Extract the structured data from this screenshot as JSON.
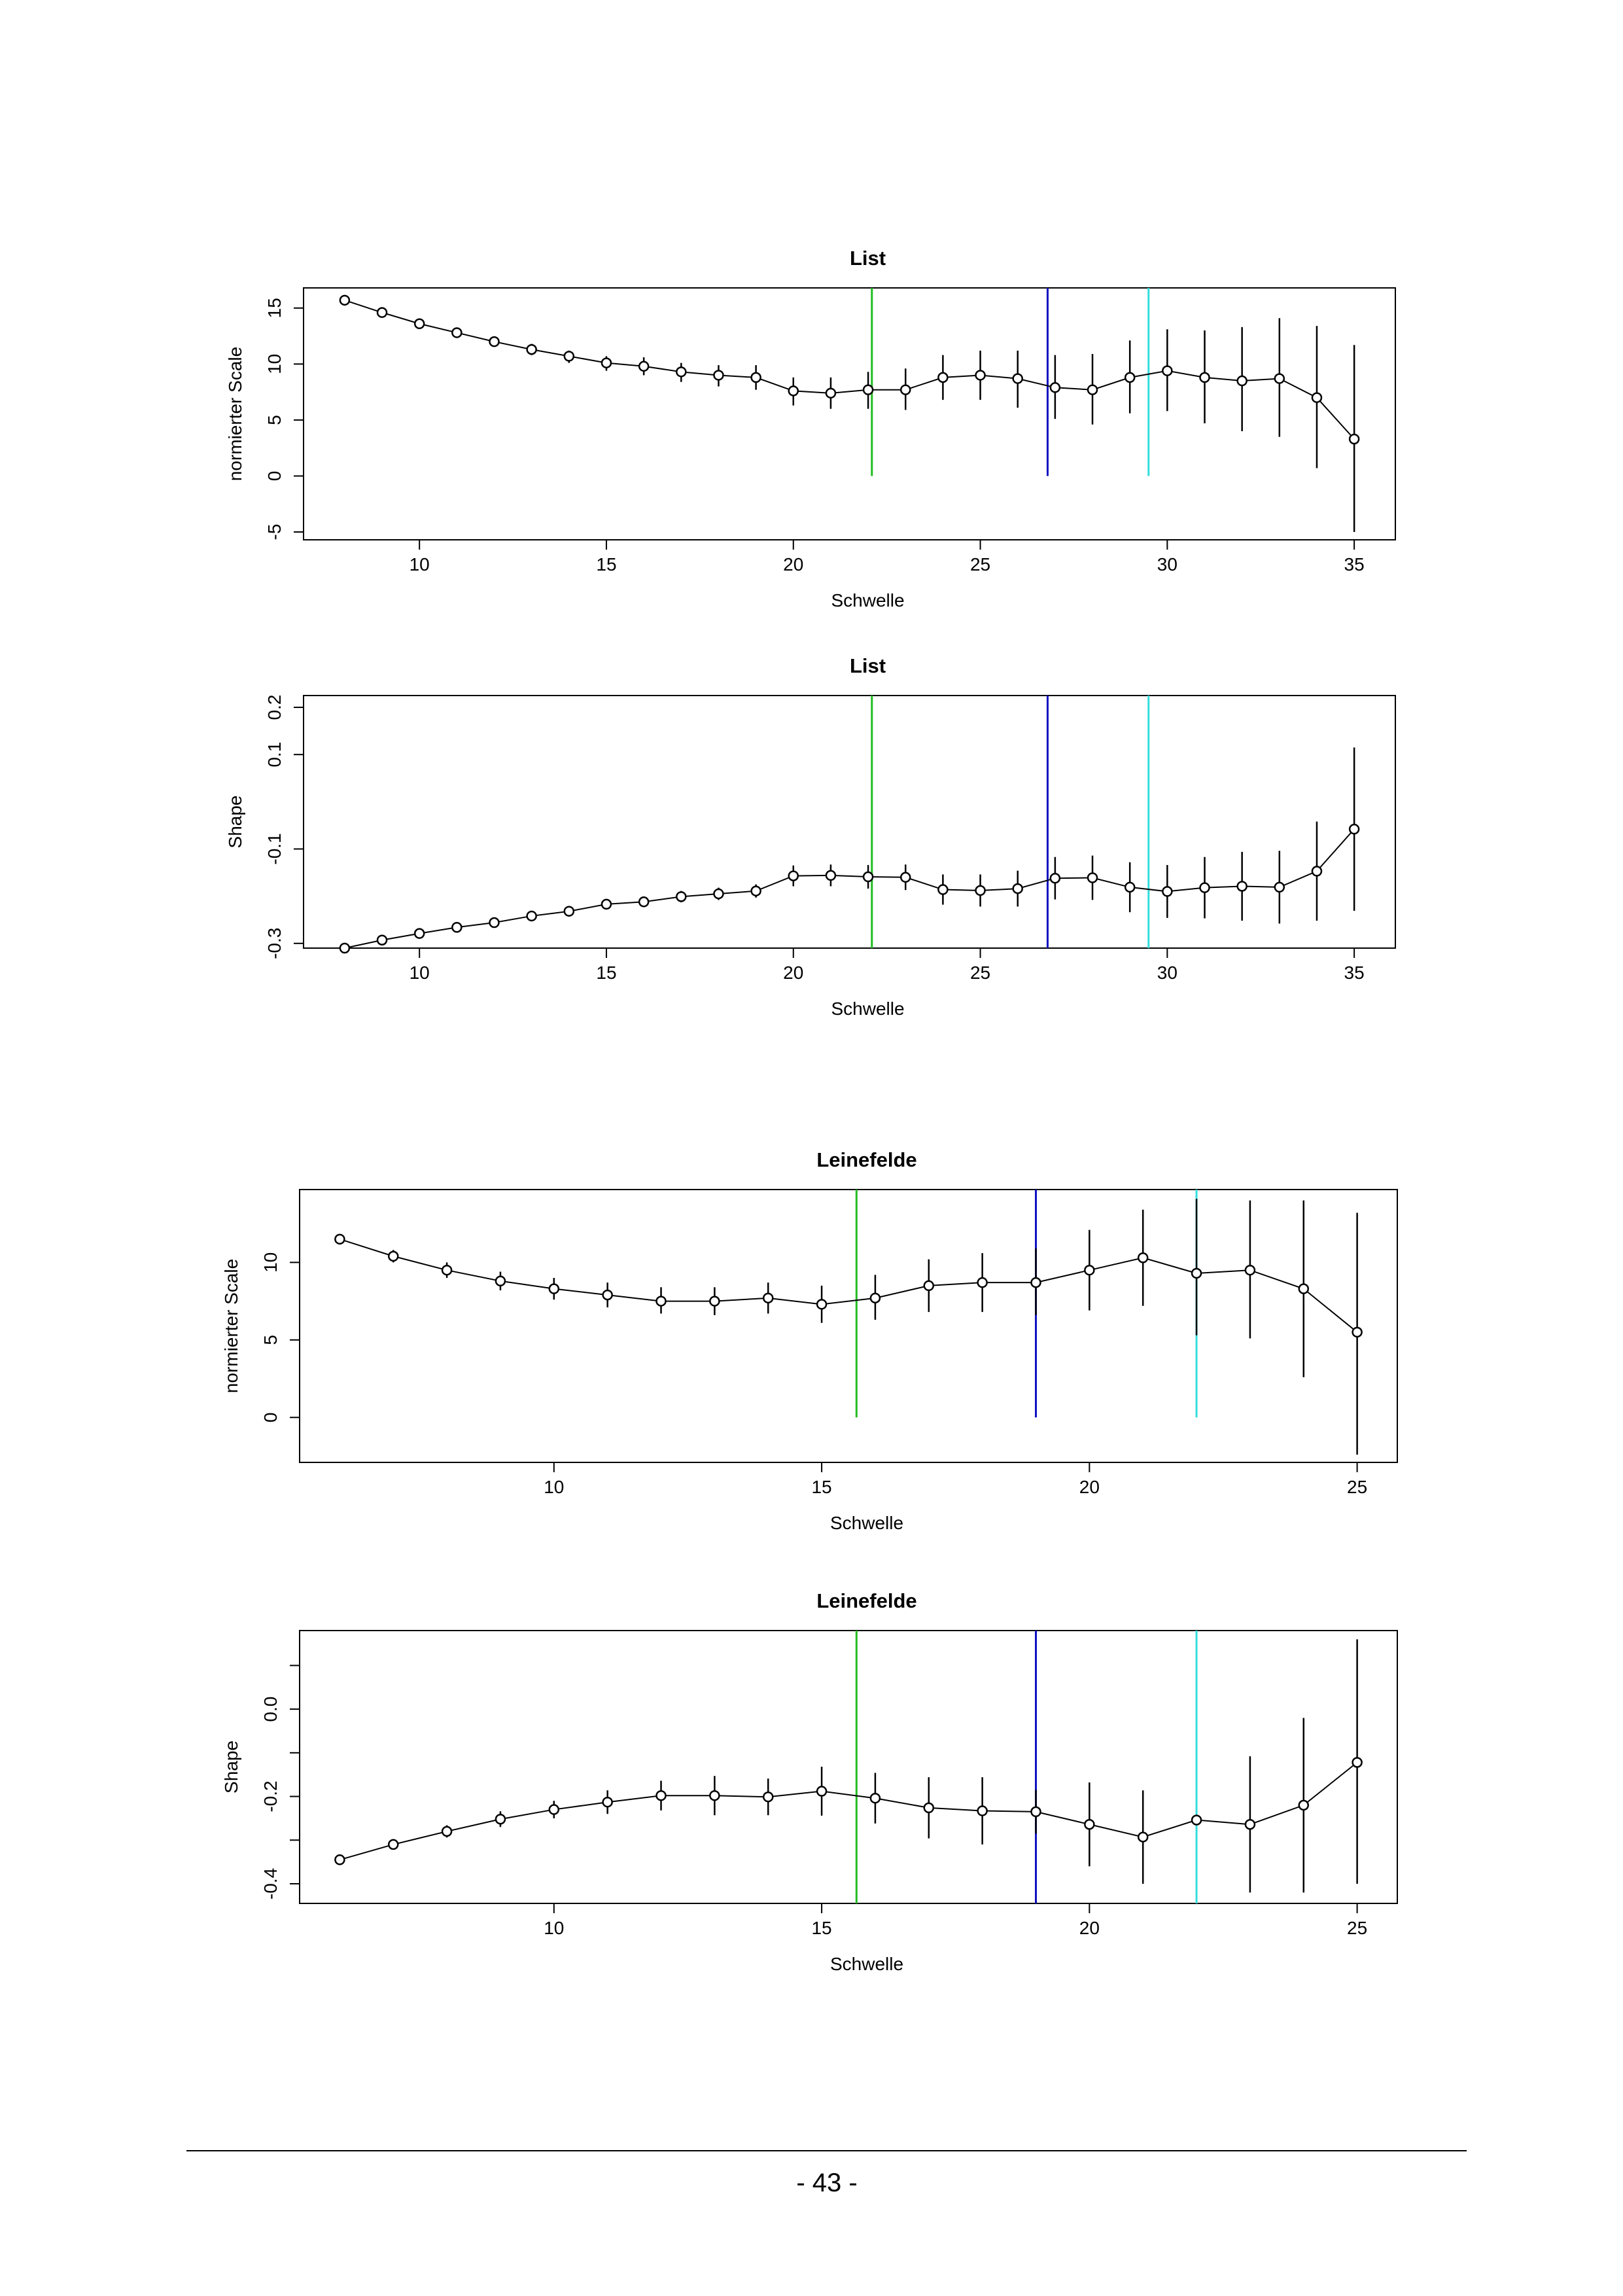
{
  "page": {
    "number_label": "- 43 -"
  },
  "chart_data": [
    {
      "type": "scatter",
      "title": "List",
      "xlabel": "Schwelle",
      "ylabel": "normierter Scale",
      "xlim": [
        6.9,
        36.1
      ],
      "ylim": [
        -5.7,
        16.8
      ],
      "xticks": [
        10,
        15,
        20,
        25,
        30,
        35
      ],
      "xtick_labels": [
        "10",
        "15",
        "20",
        "25",
        "30",
        "35"
      ],
      "yticks": [
        -5,
        0,
        5,
        10,
        15
      ],
      "ytick_labels": [
        "-5",
        "0",
        "5",
        "10",
        "15"
      ],
      "series": [
        {
          "x": [
            8,
            9,
            10,
            11,
            12,
            13,
            14,
            15,
            16,
            17,
            18,
            19,
            20,
            21,
            22,
            23,
            24,
            25,
            26,
            27,
            28,
            29,
            30,
            31,
            32,
            33,
            34,
            35
          ],
          "y": [
            15.7,
            14.6,
            13.6,
            12.8,
            12.0,
            11.3,
            10.7,
            10.1,
            9.8,
            9.3,
            9.0,
            8.8,
            7.6,
            7.4,
            7.7,
            7.7,
            8.8,
            9.0,
            8.7,
            7.9,
            7.7,
            8.8,
            9.4,
            8.8,
            8.5,
            8.7,
            7.0,
            3.3
          ],
          "lower": [
            15.5,
            14.3,
            13.3,
            12.4,
            11.6,
            10.8,
            10.1,
            9.4,
            9.0,
            8.4,
            8.0,
            7.7,
            6.3,
            6.0,
            6.0,
            5.9,
            6.8,
            6.8,
            6.1,
            5.1,
            4.6,
            5.6,
            5.8,
            4.7,
            4.0,
            3.5,
            0.7,
            -5.0
          ],
          "upper": [
            16.0,
            14.9,
            14.0,
            13.2,
            12.4,
            11.8,
            11.2,
            10.7,
            10.6,
            10.1,
            9.9,
            9.9,
            8.8,
            8.8,
            9.3,
            9.6,
            10.8,
            11.2,
            11.2,
            10.8,
            10.9,
            12.1,
            13.1,
            13.0,
            13.3,
            14.1,
            13.4,
            11.7
          ]
        }
      ],
      "vlines": [
        {
          "x": 22.1,
          "color": "#22bb22",
          "y_from": 0
        },
        {
          "x": 26.8,
          "color": "#1010c0",
          "y_from": 0
        },
        {
          "x": 29.5,
          "color": "#33dddd",
          "y_from": 0
        }
      ]
    },
    {
      "type": "scatter",
      "title": "List",
      "xlabel": "Schwelle",
      "ylabel": "Shape",
      "xlim": [
        6.9,
        36.1
      ],
      "ylim": [
        -0.31,
        0.225
      ],
      "xticks": [
        10,
        15,
        20,
        25,
        30,
        35
      ],
      "xtick_labels": [
        "10",
        "15",
        "20",
        "25",
        "30",
        "35"
      ],
      "yticks": [
        -0.3,
        -0.1,
        0.1,
        0.2
      ],
      "ytick_labels": [
        "-0.3",
        "-0.1",
        "0.1",
        "0.2"
      ],
      "series": [
        {
          "x": [
            8,
            9,
            10,
            11,
            12,
            13,
            14,
            15,
            16,
            17,
            18,
            19,
            20,
            21,
            22,
            23,
            24,
            25,
            26,
            27,
            28,
            29,
            30,
            31,
            32,
            33,
            34,
            35
          ],
          "y": [
            -0.31,
            -0.293,
            -0.279,
            -0.266,
            -0.256,
            -0.242,
            -0.232,
            -0.217,
            -0.212,
            -0.201,
            -0.195,
            -0.189,
            -0.157,
            -0.156,
            -0.159,
            -0.16,
            -0.186,
            -0.188,
            -0.184,
            -0.162,
            -0.161,
            -0.181,
            -0.19,
            -0.182,
            -0.179,
            -0.181,
            -0.147,
            -0.058
          ],
          "lower": [
            -0.313,
            -0.297,
            -0.283,
            -0.271,
            -0.262,
            -0.249,
            -0.24,
            -0.226,
            -0.222,
            -0.213,
            -0.208,
            -0.203,
            -0.179,
            -0.179,
            -0.184,
            -0.187,
            -0.218,
            -0.222,
            -0.222,
            -0.207,
            -0.208,
            -0.234,
            -0.246,
            -0.247,
            -0.252,
            -0.258,
            -0.252,
            -0.231
          ],
          "upper": [
            -0.307,
            -0.289,
            -0.275,
            -0.261,
            -0.25,
            -0.235,
            -0.224,
            -0.208,
            -0.202,
            -0.189,
            -0.182,
            -0.175,
            -0.135,
            -0.133,
            -0.134,
            -0.133,
            -0.154,
            -0.154,
            -0.146,
            -0.117,
            -0.114,
            -0.128,
            -0.134,
            -0.117,
            -0.106,
            -0.104,
            -0.042,
            0.115
          ]
        }
      ],
      "vlines": [
        {
          "x": 22.1,
          "color": "#22bb22",
          "y_from": null
        },
        {
          "x": 26.8,
          "color": "#1010c0",
          "y_from": null
        },
        {
          "x": 29.5,
          "color": "#33dddd",
          "y_from": null
        }
      ]
    },
    {
      "type": "scatter",
      "title": "Leinefelde",
      "xlabel": "Schwelle",
      "ylabel": "normierter Scale",
      "xlim": [
        5.25,
        25.75
      ],
      "ylim": [
        -2.9,
        14.7
      ],
      "xticks": [
        10,
        15,
        20,
        25
      ],
      "xtick_labels": [
        "10",
        "15",
        "20",
        "25"
      ],
      "yticks": [
        0,
        5,
        10
      ],
      "ytick_labels": [
        "0",
        "5",
        "10"
      ],
      "series": [
        {
          "x": [
            6,
            7,
            8,
            9,
            10,
            11,
            12,
            13,
            14,
            15,
            16,
            17,
            18,
            19,
            20,
            21,
            22,
            23,
            24,
            25
          ],
          "y": [
            11.5,
            10.4,
            9.5,
            8.8,
            8.3,
            7.9,
            7.5,
            7.5,
            7.7,
            7.3,
            7.7,
            8.5,
            8.7,
            8.7,
            9.5,
            10.3,
            9.3,
            9.5,
            8.3,
            5.5
          ],
          "lower": [
            11.2,
            10.0,
            9.0,
            8.2,
            7.6,
            7.1,
            6.7,
            6.6,
            6.7,
            6.1,
            6.3,
            6.8,
            6.8,
            6.6,
            6.9,
            7.2,
            5.3,
            5.1,
            2.6,
            -2.4
          ],
          "upper": [
            11.8,
            10.8,
            10.0,
            9.4,
            9.0,
            8.7,
            8.4,
            8.4,
            8.7,
            8.5,
            9.2,
            10.2,
            10.6,
            10.9,
            12.1,
            13.4,
            14.1,
            14.0,
            14.0,
            13.2
          ]
        }
      ],
      "vlines": [
        {
          "x": 15.65,
          "color": "#22bb22",
          "y_from": 0
        },
        {
          "x": 19.0,
          "color": "#1010c0",
          "y_from": 0
        },
        {
          "x": 22.0,
          "color": "#33dddd",
          "y_from": 0
        }
      ]
    },
    {
      "type": "scatter",
      "title": "Leinefelde",
      "xlabel": "Schwelle",
      "ylabel": "Shape",
      "xlim": [
        5.25,
        25.75
      ],
      "ylim": [
        -0.445,
        0.18
      ],
      "xticks": [
        10,
        15,
        20,
        25
      ],
      "xtick_labels": [
        "10",
        "15",
        "20",
        "25"
      ],
      "yticks": [
        -0.4,
        -0.3,
        -0.2,
        -0.1,
        0.0,
        0.1
      ],
      "ytick_labels": [
        "-0.4",
        "",
        "-0.2",
        "",
        "0.0",
        ""
      ],
      "series": [
        {
          "x": [
            6,
            7,
            8,
            9,
            10,
            11,
            12,
            13,
            14,
            15,
            16,
            17,
            18,
            19,
            20,
            21,
            22,
            23,
            24,
            25
          ],
          "y": [
            -0.345,
            -0.31,
            -0.28,
            -0.252,
            -0.23,
            -0.213,
            -0.198,
            -0.198,
            -0.201,
            -0.188,
            -0.204,
            -0.226,
            -0.233,
            -0.235,
            -0.264,
            -0.293,
            -0.254,
            -0.264,
            -0.22,
            -0.122
          ],
          "lower": [
            -0.355,
            -0.322,
            -0.294,
            -0.27,
            -0.25,
            -0.24,
            -0.232,
            -0.243,
            -0.243,
            -0.244,
            -0.262,
            -0.296,
            -0.31,
            -0.285,
            -0.36,
            -0.4,
            -0.254,
            -0.42,
            -0.42,
            -0.4
          ],
          "upper": [
            -0.335,
            -0.298,
            -0.266,
            -0.234,
            -0.21,
            -0.186,
            -0.164,
            -0.153,
            -0.159,
            -0.132,
            -0.146,
            -0.156,
            -0.156,
            -0.185,
            -0.168,
            -0.186,
            -0.254,
            -0.108,
            -0.02,
            0.16
          ]
        }
      ],
      "vlines": [
        {
          "x": 15.65,
          "color": "#22bb22",
          "y_from": null
        },
        {
          "x": 19.0,
          "color": "#1010c0",
          "y_from": null
        },
        {
          "x": 22.0,
          "color": "#33dddd",
          "y_from": null
        }
      ]
    }
  ]
}
